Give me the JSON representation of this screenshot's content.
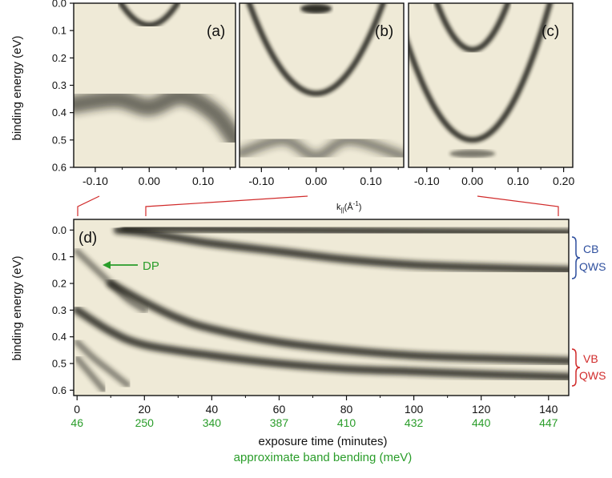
{
  "chart_data": [
    {
      "type": "heatmap",
      "panel": "(a)",
      "ylabel": "binding energy (eV)",
      "yticks": [
        "0.0",
        "0.1",
        "0.2",
        "0.3",
        "0.4",
        "0.5",
        "0.6"
      ],
      "ylim": [
        0.6,
        0.0
      ],
      "xticks": [
        "-0.10",
        "0.00",
        "0.10"
      ],
      "xlim": [
        -0.14,
        0.16
      ],
      "bands": [
        {
          "kind": "v-shaped",
          "vertex_k": 0.0,
          "vertex_E": 0.08,
          "top_E": 0.0
        },
        {
          "kind": "broad-band",
          "k": [
            -0.14,
            -0.06,
            0.0,
            0.06,
            0.12,
            0.16
          ],
          "E": [
            0.37,
            0.35,
            0.38,
            0.34,
            0.4,
            0.5
          ]
        }
      ]
    },
    {
      "type": "heatmap",
      "panel": "(b)",
      "xticks": [
        "-0.10",
        "0.00",
        "0.10"
      ],
      "xlim": [
        -0.14,
        0.16
      ],
      "ylim": [
        0.6,
        0.0
      ],
      "bands": [
        {
          "kind": "v-shaped",
          "vertex_k": 0.0,
          "vertex_E": 0.33,
          "top_E": 0.0
        },
        {
          "kind": "flat-top",
          "k": [
            -0.02,
            0.02
          ],
          "E": [
            0.02,
            0.02
          ]
        },
        {
          "kind": "wavy-band",
          "k": [
            -0.14,
            -0.06,
            0.0,
            0.06,
            0.16
          ],
          "E": [
            0.55,
            0.5,
            0.56,
            0.5,
            0.56
          ]
        }
      ]
    },
    {
      "type": "heatmap",
      "panel": "(c)",
      "xticks": [
        "-0.10",
        "0.00",
        "0.10",
        "0.20"
      ],
      "xlim": [
        -0.14,
        0.22
      ],
      "ylim": [
        0.6,
        0.0
      ],
      "bands": [
        {
          "kind": "v-shaped",
          "vertex_k": 0.0,
          "vertex_E": 0.17,
          "top_E": 0.0
        },
        {
          "kind": "v-shaped",
          "vertex_k": 0.0,
          "vertex_E": 0.5,
          "top_E": 0.0
        },
        {
          "kind": "bottom-feature",
          "k": [
            -0.05,
            0.05
          ],
          "E": [
            0.55,
            0.55
          ]
        }
      ]
    },
    {
      "type": "heatmap",
      "panel": "(d)",
      "ylabel": "binding energy (eV)",
      "xlabel": "exposure time (minutes)",
      "xlabel2": "approximate band bending (meV)",
      "xticks": [
        "0",
        "20",
        "40",
        "60",
        "80",
        "100",
        "120",
        "140"
      ],
      "xticks2": [
        "46",
        "250",
        "340",
        "387",
        "410",
        "432",
        "440",
        "447"
      ],
      "xlim": [
        -1,
        146
      ],
      "yticks": [
        "0.0",
        "0.1",
        "0.2",
        "0.3",
        "0.4",
        "0.5",
        "0.6"
      ],
      "ylim": [
        0.62,
        -0.04
      ],
      "annotations": [
        {
          "text": "DP",
          "color": "#2a9d2a",
          "x": 8,
          "y": 0.12
        },
        {
          "text": "CB",
          "color": "#2e4f9e"
        },
        {
          "text": "QWS",
          "color": "#2e4f9e"
        },
        {
          "text": "VB",
          "color": "#d12b2b"
        },
        {
          "text": "QWS",
          "color": "#d12b2b"
        }
      ],
      "bands": [
        {
          "name": "CB QWS 1",
          "time": [
            12,
            20,
            30,
            40,
            60,
            80,
            100,
            120,
            146
          ],
          "E": [
            0.0,
            0.01,
            0.03,
            0.05,
            0.08,
            0.11,
            0.13,
            0.14,
            0.15
          ]
        },
        {
          "name": "CB QWS 2",
          "time": [
            14,
            30,
            60,
            100,
            146
          ],
          "E": [
            -0.01,
            -0.005,
            0.0,
            0.005,
            0.01
          ]
        },
        {
          "name": "VB QWS 1",
          "time": [
            10,
            20,
            30,
            40,
            60,
            80,
            100,
            120,
            146
          ],
          "E": [
            0.2,
            0.27,
            0.33,
            0.37,
            0.42,
            0.45,
            0.47,
            0.48,
            0.49
          ]
        },
        {
          "name": "VB QWS 2",
          "time": [
            0,
            10,
            20,
            40,
            60,
            80,
            100,
            120,
            146
          ],
          "E": [
            0.3,
            0.38,
            0.43,
            0.47,
            0.5,
            0.52,
            0.53,
            0.54,
            0.55
          ]
        },
        {
          "name": "early band",
          "time": [
            0,
            5,
            10,
            15,
            20
          ],
          "E": [
            0.08,
            0.14,
            0.2,
            0.26,
            0.3
          ]
        },
        {
          "name": "early band 2",
          "time": [
            0,
            5,
            10,
            15
          ],
          "E": [
            0.42,
            0.48,
            0.53,
            0.58
          ]
        },
        {
          "name": "early band 3",
          "time": [
            0,
            4,
            8
          ],
          "E": [
            0.48,
            0.54,
            0.6
          ]
        }
      ]
    }
  ],
  "shared": {
    "kx_label": "k",
    "kx_sub": "||",
    "kx_unit": "(Å",
    "kx_exp": "-1",
    "kx_close": ")"
  },
  "colors": {
    "background": "#efead7",
    "band": "#1e1a12",
    "connector": "#d12b2b",
    "green": "#2a9d2a",
    "blue": "#2e4f9e",
    "red": "#d12b2b"
  }
}
